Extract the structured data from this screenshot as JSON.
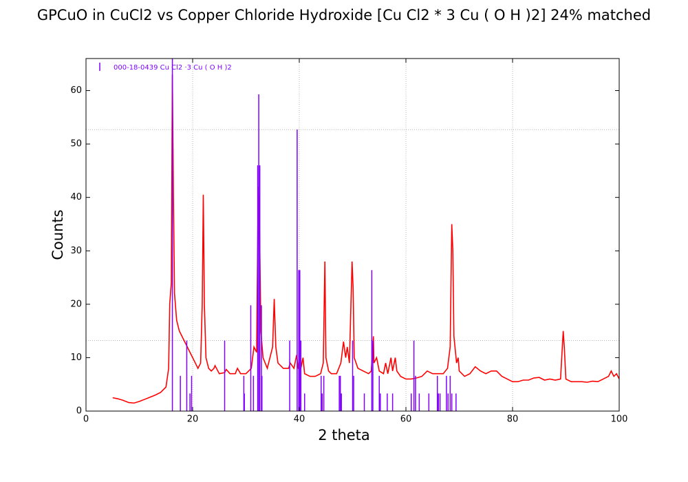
{
  "chart_data": {
    "type": "line",
    "title": "GPCuO in CuCl2 vs Copper Chloride Hydroxide [Cu Cl2 * 3 Cu ( O H )2] 24% matched",
    "xlabel": "2 theta",
    "ylabel": "Counts",
    "xlim": [
      0,
      100
    ],
    "ylim": [
      0,
      66
    ],
    "xticks": [
      0,
      20,
      40,
      60,
      80,
      100
    ],
    "yticks": [
      0,
      10,
      20,
      30,
      40,
      50,
      60
    ],
    "xgrid": true,
    "hlines": [
      13.2,
      52.7
    ],
    "series": [
      {
        "type": "line",
        "color": "#ff0000",
        "x": [
          5,
          6,
          7,
          8,
          9,
          10,
          11,
          12,
          13,
          14,
          15,
          15.5,
          15.7,
          16.0,
          16.2,
          16.4,
          16.6,
          17,
          17.5,
          18,
          19,
          20,
          20.5,
          21,
          21.5,
          21.8,
          22.0,
          22.2,
          22.5,
          23,
          23.5,
          24,
          24.2,
          25,
          26,
          26.3,
          27,
          28,
          28.4,
          29,
          30,
          31,
          31.5,
          32,
          32.3,
          32.5,
          32.8,
          33.2,
          34,
          35,
          35.3,
          35.6,
          36,
          37,
          38,
          38.3,
          39,
          39.5,
          39.8,
          40.3,
          40.7,
          41,
          42,
          43,
          44,
          44.5,
          44.8,
          45,
          45.5,
          46,
          47,
          47.8,
          48.3,
          48.7,
          49,
          49.4,
          49.9,
          50.1,
          50.3,
          51,
          52,
          53,
          53.5,
          53.9,
          54,
          54.5,
          55,
          55.8,
          56.2,
          56.6,
          57.2,
          57.5,
          58,
          58.3,
          59,
          60,
          61,
          62,
          63,
          64,
          65,
          66,
          67,
          67.8,
          68.3,
          68.6,
          68.8,
          69.0,
          69.5,
          69.8,
          70,
          71,
          72,
          73,
          74,
          75,
          76,
          77,
          78,
          79,
          80,
          81,
          82,
          83,
          84,
          85,
          86,
          87,
          88,
          89,
          89.5,
          89.7,
          90,
          91,
          92,
          93,
          94,
          95,
          96,
          97,
          98,
          98.5,
          99,
          99.5,
          100
        ],
        "values": [
          2.5,
          2.3,
          2.0,
          1.6,
          1.5,
          1.8,
          2.2,
          2.6,
          3.0,
          3.5,
          4.5,
          8,
          20,
          24,
          63,
          40,
          22,
          17,
          15,
          14,
          12,
          10,
          9,
          8,
          9,
          20,
          40.5,
          20,
          10,
          8,
          7.5,
          8,
          8.5,
          7,
          7.2,
          7.8,
          7,
          7,
          8,
          7,
          7,
          8,
          12,
          11,
          42,
          38,
          15,
          10,
          8,
          12,
          21,
          12,
          9,
          8,
          8,
          9,
          8,
          10.5,
          8,
          8,
          10,
          7,
          6.5,
          6.5,
          7,
          9,
          28,
          10,
          7.5,
          7,
          7,
          9,
          13,
          10,
          12,
          9,
          28,
          23,
          10,
          8,
          7.5,
          7,
          7.5,
          14,
          9,
          10,
          7.5,
          7,
          9,
          7,
          10,
          7.5,
          10,
          7.5,
          6.5,
          6,
          6,
          6.2,
          6.5,
          7.5,
          7,
          7,
          7,
          8,
          12,
          35,
          30,
          14,
          9,
          10,
          7.5,
          6.5,
          7,
          8.3,
          7.5,
          7,
          7.5,
          7.5,
          6.5,
          6,
          5.5,
          5.5,
          5.8,
          5.8,
          6.2,
          6.3,
          5.8,
          6,
          5.8,
          6,
          15,
          12,
          6,
          5.5,
          5.5,
          5.5,
          5.4,
          5.6,
          5.5,
          6,
          6.5,
          7.5,
          6.5,
          7,
          6
        ]
      },
      {
        "type": "stick",
        "name": "000-18-0439 Cu Cl2 ·3 Cu ( O H )2",
        "color": "#8000ff",
        "x": [
          16.2,
          17.7,
          18.9,
          19.5,
          19.8,
          26.0,
          29.6,
          29.7,
          30.9,
          31.4,
          32.2,
          32.4,
          32.6,
          32.9,
          33.0,
          38.2,
          39.6,
          39.9,
          40.1,
          40.3,
          41.0,
          44.1,
          44.3,
          44.6,
          47.5,
          47.7,
          47.9,
          50.0,
          50.2,
          52.2,
          53.6,
          53.8,
          55.0,
          55.2,
          56.5,
          57.5,
          61.0,
          61.5,
          61.8,
          62.5,
          64.3,
          65.9,
          66.1,
          66.4,
          67.6,
          67.9,
          68.3,
          68.6,
          69.4
        ],
        "values": [
          66,
          6.6,
          13.2,
          3.3,
          6.6,
          13.2,
          6.6,
          3.3,
          19.8,
          6.6,
          46,
          59.3,
          46,
          19.8,
          6.6,
          13.2,
          52.7,
          26.4,
          26.4,
          13.2,
          3.3,
          6.6,
          3.3,
          6.6,
          6.6,
          6.6,
          3.3,
          13.2,
          6.6,
          3.3,
          26.4,
          13.2,
          6.6,
          3.3,
          3.3,
          3.3,
          3.3,
          13.2,
          6.6,
          3.3,
          3.3,
          6.6,
          3.3,
          3.3,
          6.6,
          3.3,
          6.6,
          3.3,
          3.3
        ]
      }
    ]
  }
}
